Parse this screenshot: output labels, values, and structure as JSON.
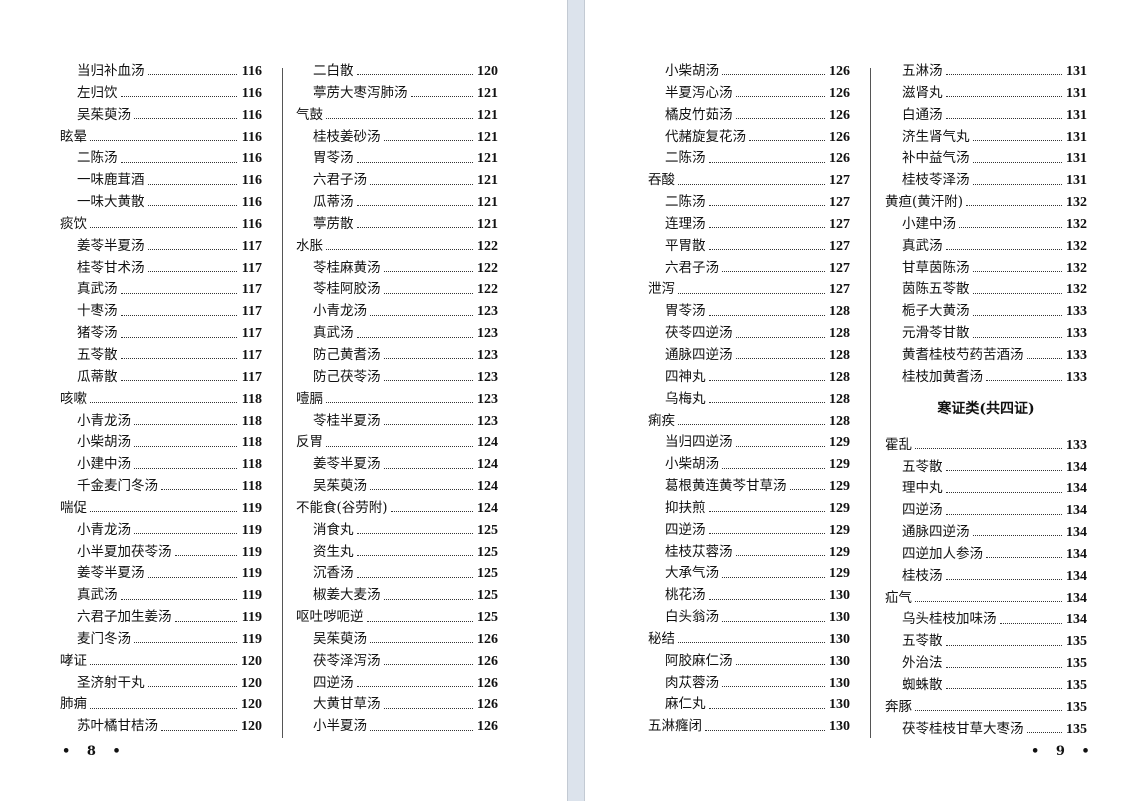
{
  "left_page": {
    "folio": "• 8 •",
    "columns": [
      {
        "entries": [
          {
            "text": "当归补血汤",
            "page": "116",
            "level": 2
          },
          {
            "text": "左归饮",
            "page": "116",
            "level": 2
          },
          {
            "text": "吴茱萸汤",
            "page": "116",
            "level": 2
          },
          {
            "text": "眩晕",
            "page": "116",
            "level": 1
          },
          {
            "text": "二陈汤",
            "page": "116",
            "level": 2
          },
          {
            "text": "一味鹿茸酒",
            "page": "116",
            "level": 2
          },
          {
            "text": "一味大黄散",
            "page": "116",
            "level": 2
          },
          {
            "text": "痰饮",
            "page": "116",
            "level": 1
          },
          {
            "text": "姜苓半夏汤",
            "page": "117",
            "level": 2
          },
          {
            "text": "桂苓甘术汤",
            "page": "117",
            "level": 2
          },
          {
            "text": "真武汤",
            "page": "117",
            "level": 2
          },
          {
            "text": "十枣汤",
            "page": "117",
            "level": 2
          },
          {
            "text": "猪苓汤",
            "page": "117",
            "level": 2
          },
          {
            "text": "五苓散",
            "page": "117",
            "level": 2
          },
          {
            "text": "瓜蒂散",
            "page": "117",
            "level": 2
          },
          {
            "text": "咳嗽",
            "page": "118",
            "level": 1
          },
          {
            "text": "小青龙汤",
            "page": "118",
            "level": 2
          },
          {
            "text": "小柴胡汤",
            "page": "118",
            "level": 2
          },
          {
            "text": "小建中汤",
            "page": "118",
            "level": 2
          },
          {
            "text": "千金麦门冬汤",
            "page": "118",
            "level": 2
          },
          {
            "text": "喘促",
            "page": "119",
            "level": 1
          },
          {
            "text": "小青龙汤",
            "page": "119",
            "level": 2
          },
          {
            "text": "小半夏加茯苓汤",
            "page": "119",
            "level": 2
          },
          {
            "text": "姜苓半夏汤",
            "page": "119",
            "level": 2
          },
          {
            "text": "真武汤",
            "page": "119",
            "level": 2
          },
          {
            "text": "六君子加生姜汤",
            "page": "119",
            "level": 2
          },
          {
            "text": "麦门冬汤",
            "page": "119",
            "level": 2
          },
          {
            "text": "哮证",
            "page": "120",
            "level": 1
          },
          {
            "text": "圣济射干丸",
            "page": "120",
            "level": 2
          },
          {
            "text": "肺痈",
            "page": "120",
            "level": 1
          },
          {
            "text": "苏叶橘甘桔汤",
            "page": "120",
            "level": 2
          }
        ]
      },
      {
        "entries": [
          {
            "text": "二白散",
            "page": "120",
            "level": 2
          },
          {
            "text": "葶苈大枣泻肺汤",
            "page": "121",
            "level": 2
          },
          {
            "text": "气鼓",
            "page": "121",
            "level": 1
          },
          {
            "text": "桂枝姜砂汤",
            "page": "121",
            "level": 2
          },
          {
            "text": "胃苓汤",
            "page": "121",
            "level": 2
          },
          {
            "text": "六君子汤",
            "page": "121",
            "level": 2
          },
          {
            "text": "瓜蒂汤",
            "page": "121",
            "level": 2
          },
          {
            "text": "葶苈散",
            "page": "121",
            "level": 2
          },
          {
            "text": "水胀",
            "page": "122",
            "level": 1
          },
          {
            "text": "苓桂麻黄汤",
            "page": "122",
            "level": 2
          },
          {
            "text": "苓桂阿胶汤",
            "page": "122",
            "level": 2
          },
          {
            "text": "小青龙汤",
            "page": "123",
            "level": 2
          },
          {
            "text": "真武汤",
            "page": "123",
            "level": 2
          },
          {
            "text": "防己黄耆汤",
            "page": "123",
            "level": 2
          },
          {
            "text": "防己茯苓汤",
            "page": "123",
            "level": 2
          },
          {
            "text": "噎膈",
            "page": "123",
            "level": 1
          },
          {
            "text": "苓桂半夏汤",
            "page": "123",
            "level": 2
          },
          {
            "text": "反胃",
            "page": "124",
            "level": 1
          },
          {
            "text": "姜苓半夏汤",
            "page": "124",
            "level": 2
          },
          {
            "text": "吴茱萸汤",
            "page": "124",
            "level": 2
          },
          {
            "text": "不能食(谷劳附)",
            "page": "124",
            "level": 1
          },
          {
            "text": "消食丸",
            "page": "125",
            "level": 2
          },
          {
            "text": "资生丸",
            "page": "125",
            "level": 2
          },
          {
            "text": "沉香汤",
            "page": "125",
            "level": 2
          },
          {
            "text": "椒姜大麦汤",
            "page": "125",
            "level": 2
          },
          {
            "text": "呕吐哕呃逆",
            "page": "125",
            "level": 1
          },
          {
            "text": "吴茱萸汤",
            "page": "126",
            "level": 2
          },
          {
            "text": "茯苓泽泻汤",
            "page": "126",
            "level": 2
          },
          {
            "text": "四逆汤",
            "page": "126",
            "level": 2
          },
          {
            "text": "大黄甘草汤",
            "page": "126",
            "level": 2
          },
          {
            "text": "小半夏汤",
            "page": "126",
            "level": 2
          }
        ]
      }
    ]
  },
  "right_page": {
    "folio": "• 9 •",
    "columns": [
      {
        "entries": [
          {
            "text": "小柴胡汤",
            "page": "126",
            "level": 2
          },
          {
            "text": "半夏泻心汤",
            "page": "126",
            "level": 2
          },
          {
            "text": "橘皮竹茹汤",
            "page": "126",
            "level": 2
          },
          {
            "text": "代赭旋复花汤",
            "page": "126",
            "level": 2
          },
          {
            "text": "二陈汤",
            "page": "126",
            "level": 2
          },
          {
            "text": "吞酸",
            "page": "127",
            "level": 1
          },
          {
            "text": "二陈汤",
            "page": "127",
            "level": 2
          },
          {
            "text": "连理汤",
            "page": "127",
            "level": 2
          },
          {
            "text": "平胃散",
            "page": "127",
            "level": 2
          },
          {
            "text": "六君子汤",
            "page": "127",
            "level": 2
          },
          {
            "text": "泄泻",
            "page": "127",
            "level": 1
          },
          {
            "text": "胃苓汤",
            "page": "128",
            "level": 2
          },
          {
            "text": "茯苓四逆汤",
            "page": "128",
            "level": 2
          },
          {
            "text": "通脉四逆汤",
            "page": "128",
            "level": 2
          },
          {
            "text": "四神丸",
            "page": "128",
            "level": 2
          },
          {
            "text": "乌梅丸",
            "page": "128",
            "level": 2
          },
          {
            "text": "痢疾",
            "page": "128",
            "level": 1
          },
          {
            "text": "当归四逆汤",
            "page": "129",
            "level": 2
          },
          {
            "text": "小柴胡汤",
            "page": "129",
            "level": 2
          },
          {
            "text": "葛根黄连黄芩甘草汤",
            "page": "129",
            "level": 2
          },
          {
            "text": "抑扶煎",
            "page": "129",
            "level": 2
          },
          {
            "text": "四逆汤",
            "page": "129",
            "level": 2
          },
          {
            "text": "桂枝苁蓉汤",
            "page": "129",
            "level": 2
          },
          {
            "text": "大承气汤",
            "page": "129",
            "level": 2
          },
          {
            "text": "桃花汤",
            "page": "130",
            "level": 2
          },
          {
            "text": "白头翁汤",
            "page": "130",
            "level": 2
          },
          {
            "text": "秘结",
            "page": "130",
            "level": 1
          },
          {
            "text": "阿胶麻仁汤",
            "page": "130",
            "level": 2
          },
          {
            "text": "肉苁蓉汤",
            "page": "130",
            "level": 2
          },
          {
            "text": "麻仁丸",
            "page": "130",
            "level": 2
          },
          {
            "text": "五淋癃闭",
            "page": "130",
            "level": 1
          }
        ]
      },
      {
        "entries": [
          {
            "text": "五淋汤",
            "page": "131",
            "level": 2
          },
          {
            "text": "滋肾丸",
            "page": "131",
            "level": 2
          },
          {
            "text": "白通汤",
            "page": "131",
            "level": 2
          },
          {
            "text": "济生肾气丸",
            "page": "131",
            "level": 2
          },
          {
            "text": "补中益气汤",
            "page": "131",
            "level": 2
          },
          {
            "text": "桂枝苓泽汤",
            "page": "131",
            "level": 2
          },
          {
            "text": "黄疸(黄汗附)",
            "page": "132",
            "level": 1
          },
          {
            "text": "小建中汤",
            "page": "132",
            "level": 2
          },
          {
            "text": "真武汤",
            "page": "132",
            "level": 2
          },
          {
            "text": "甘草茵陈汤",
            "page": "132",
            "level": 2
          },
          {
            "text": "茵陈五苓散",
            "page": "132",
            "level": 2
          },
          {
            "text": "栀子大黄汤",
            "page": "133",
            "level": 2
          },
          {
            "text": "元滑苓甘散",
            "page": "133",
            "level": 2
          },
          {
            "text": "黄耆桂枝芍药苦酒汤",
            "page": "133",
            "level": 2
          },
          {
            "text": "桂枝加黄耆汤",
            "page": "133",
            "level": 2
          },
          {
            "heading": "寒证类(共四证)"
          },
          {
            "text": "霍乱",
            "page": "133",
            "level": 1
          },
          {
            "text": "五苓散",
            "page": "134",
            "level": 2
          },
          {
            "text": "理中丸",
            "page": "134",
            "level": 2
          },
          {
            "text": "四逆汤",
            "page": "134",
            "level": 2
          },
          {
            "text": "通脉四逆汤",
            "page": "134",
            "level": 2
          },
          {
            "text": "四逆加人参汤",
            "page": "134",
            "level": 2
          },
          {
            "text": "桂枝汤",
            "page": "134",
            "level": 2
          },
          {
            "text": "疝气",
            "page": "134",
            "level": 1
          },
          {
            "text": "乌头桂枝加味汤",
            "page": "134",
            "level": 2
          },
          {
            "text": "五苓散",
            "page": "135",
            "level": 2
          },
          {
            "text": "外治法",
            "page": "135",
            "level": 2
          },
          {
            "text": "蜘蛛散",
            "page": "135",
            "level": 2
          },
          {
            "text": "奔豚",
            "page": "135",
            "level": 1
          },
          {
            "text": "茯苓桂枝甘草大枣汤",
            "page": "135",
            "level": 2
          }
        ]
      }
    ]
  }
}
